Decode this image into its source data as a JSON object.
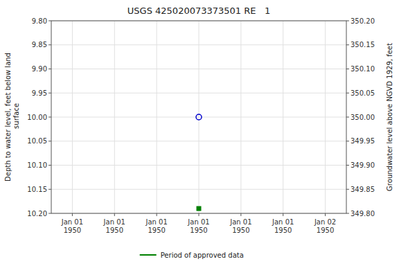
{
  "chart_data": {
    "type": "scatter",
    "title": "USGS 425020073373501 RE   1",
    "ylabel": "Depth to water level, feet below land\n surface",
    "y2label": "Groundwater level above NGVD 1929, feet",
    "categories": [
      "Jan 01\n1950",
      "Jan 01\n1950",
      "Jan 01\n1950",
      "Jan 01\n1950",
      "Jan 01\n1950",
      "Jan 01\n1950",
      "Jan 02\n1950"
    ],
    "series": [
      {
        "color": "#0000cc",
        "marker": "circle-open",
        "axis": "y",
        "values": [
          null,
          null,
          null,
          10.0,
          null,
          null,
          null
        ]
      },
      {
        "name": "Period of approved data",
        "color": "#008000",
        "marker": "square",
        "axis": "y",
        "values": [
          null,
          null,
          null,
          10.19,
          null,
          null,
          null
        ]
      }
    ],
    "ylim": [
      10.2,
      9.8
    ],
    "yticks": [
      {
        "value": 9.8,
        "label": "9.80"
      },
      {
        "value": 9.85,
        "label": "9.85"
      },
      {
        "value": 9.9,
        "label": "9.90"
      },
      {
        "value": 9.95,
        "label": "9.95"
      },
      {
        "value": 10.0,
        "label": "10.00"
      },
      {
        "value": 10.05,
        "label": "10.05"
      },
      {
        "value": 10.1,
        "label": "10.10"
      },
      {
        "value": 10.15,
        "label": "10.15"
      },
      {
        "value": 10.2,
        "label": "10.20"
      }
    ],
    "y2lim": [
      349.8,
      350.2
    ],
    "y2ticks": [
      {
        "value": 350.2,
        "label": "350.20"
      },
      {
        "value": 350.15,
        "label": "350.15"
      },
      {
        "value": 350.1,
        "label": "350.10"
      },
      {
        "value": 350.05,
        "label": "350.05"
      },
      {
        "value": 350.0,
        "label": "350.00"
      },
      {
        "value": 349.95,
        "label": "349.95"
      },
      {
        "value": 349.9,
        "label": "349.90"
      },
      {
        "value": 349.85,
        "label": "349.85"
      },
      {
        "value": 349.8,
        "label": "349.80"
      }
    ],
    "grid": true,
    "legend": "bottom"
  }
}
